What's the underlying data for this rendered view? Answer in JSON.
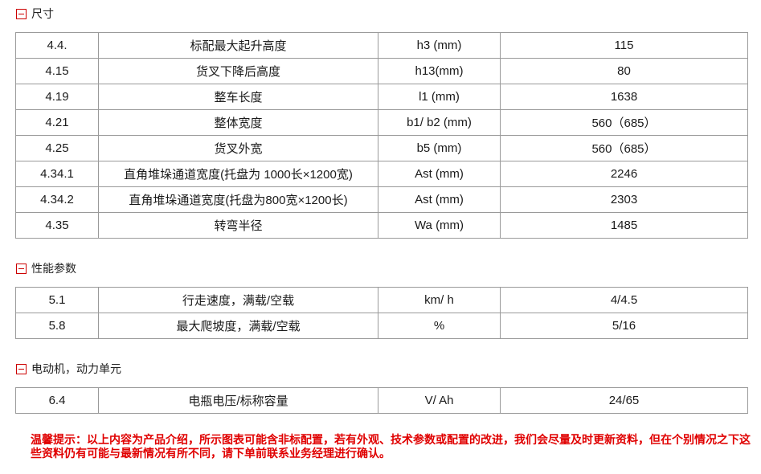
{
  "colors": {
    "accent_red": "#cc0000",
    "notice_red": "#e00000",
    "border_gray": "#9a9a9a",
    "text_black": "#1a1a1a"
  },
  "sections": [
    {
      "title": "尺寸",
      "icon": "minus-box",
      "rows": [
        {
          "no": "4.4.",
          "name": "标配最大起升高度",
          "symbol": "h3 (mm)",
          "value": "115"
        },
        {
          "no": "4.15",
          "name": "货叉下降后高度",
          "symbol": "h13(mm)",
          "value": "80"
        },
        {
          "no": "4.19",
          "name": "整车长度",
          "symbol": "l1 (mm)",
          "value": "1638"
        },
        {
          "no": "4.21",
          "name": "整体宽度",
          "symbol": "b1/ b2 (mm)",
          "value": "560（685）"
        },
        {
          "no": "4.25",
          "name": "货叉外宽",
          "symbol": "b5 (mm)",
          "value": "560（685）"
        },
        {
          "no": "4.34.1",
          "name": "直角堆垛通道宽度(托盘为 1000长×1200宽)",
          "symbol": "Ast (mm)",
          "value": "2246"
        },
        {
          "no": "4.34.2",
          "name": "直角堆垛通道宽度(托盘为800宽×1200长)",
          "symbol": "Ast (mm)",
          "value": "2303"
        },
        {
          "no": "4.35",
          "name": "转弯半径",
          "symbol": "Wa (mm)",
          "value": "1485"
        }
      ]
    },
    {
      "title": "性能参数",
      "icon": "minus-box",
      "rows": [
        {
          "no": "5.1",
          "name": "行走速度，满载/空载",
          "symbol": "km/ h",
          "value": "4/4.5"
        },
        {
          "no": "5.8",
          "name": "最大爬坡度，满载/空载",
          "symbol": "%",
          "value": "5/16"
        }
      ]
    },
    {
      "title": "电动机，动力单元",
      "icon": "minus-box",
      "rows": [
        {
          "no": "6.4",
          "name": "电瓶电压/标称容量",
          "symbol": "V/ Ah",
          "value": "24/65"
        }
      ]
    }
  ],
  "notice": {
    "text": "温馨提示：以上内容为产品介绍，所示图表可能含非标配置，若有外观、技术参数或配置的改进，我们会尽量及时更新资料，但在个别情况之下这些资料仍有可能与最新情况有所不同，请下单前联系业务经理进行确认。"
  }
}
